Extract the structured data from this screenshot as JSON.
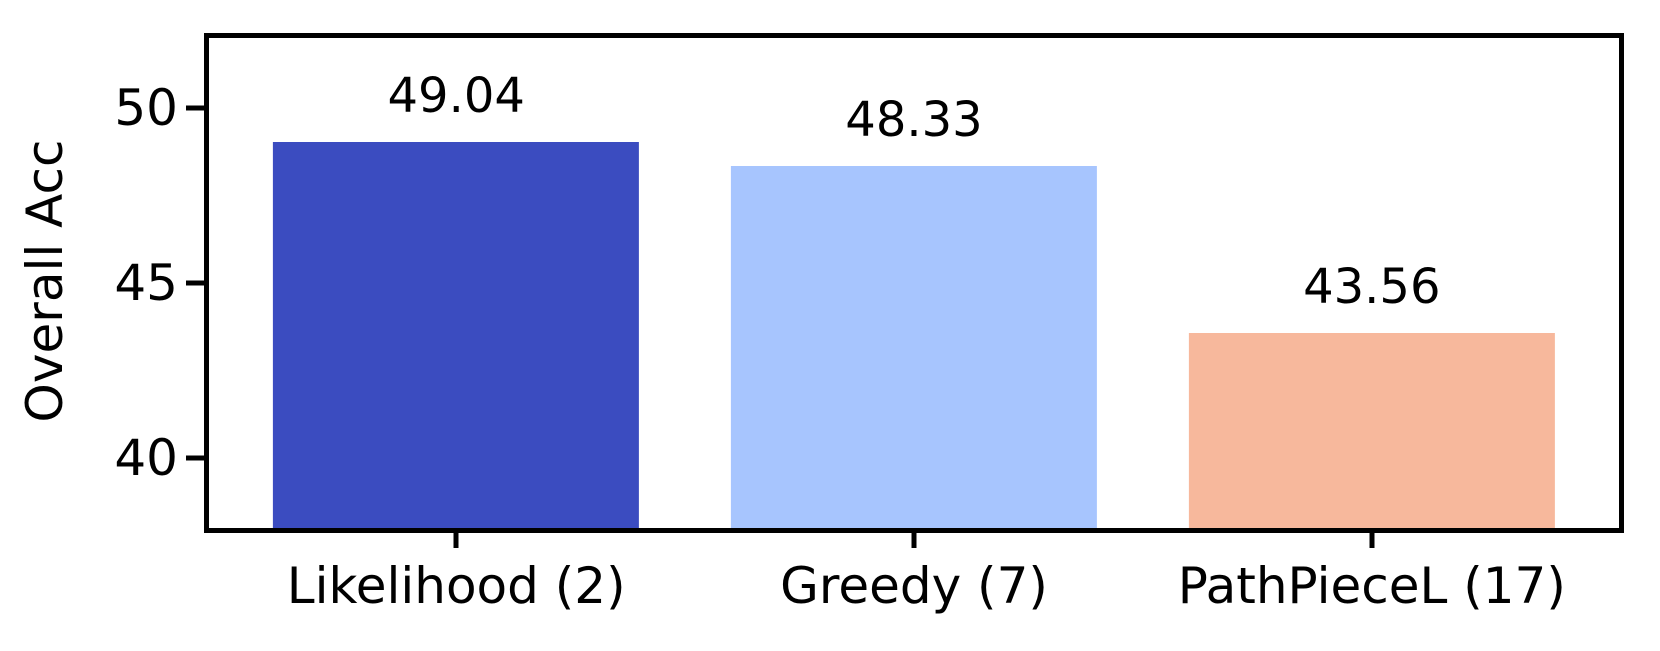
{
  "chart_data": {
    "type": "bar",
    "categories": [
      "Likelihood (2)",
      "Greedy (7)",
      "PathPieceL (17)"
    ],
    "values": [
      49.04,
      48.33,
      43.56
    ],
    "bar_labels": [
      "49.04",
      "48.33",
      "43.56"
    ],
    "bar_colors": [
      "#3b4cc0",
      "#a7c5fe",
      "#f7b89c"
    ],
    "title": "",
    "xlabel": "",
    "ylabel": "Overall Acc",
    "ylim": [
      38,
      52
    ],
    "ytick_values": [
      40,
      45,
      50
    ],
    "ytick_labels": [
      "40",
      "45",
      "50"
    ],
    "xlim_units": [
      -0.54,
      2.54
    ],
    "bar_width_units": 0.8,
    "grid": false,
    "legend": null,
    "axis_color": "#000000",
    "text_color": "#000000",
    "background_color": "#ffffff"
  }
}
